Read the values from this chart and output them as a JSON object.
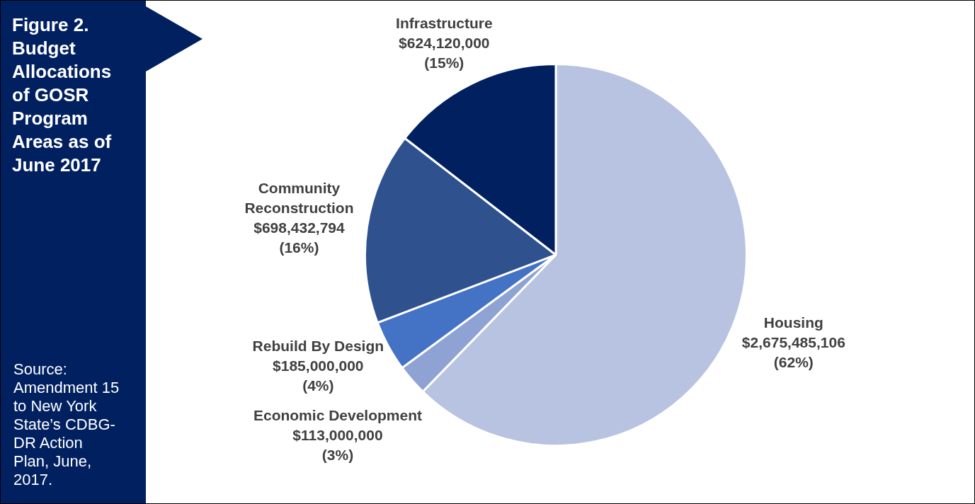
{
  "chart_data": {
    "type": "pie",
    "title": "Figure 2. Budget Allocations of GOSR Program Areas as of June 2017",
    "categories": [
      "Housing",
      "Economic Development",
      "Rebuild By Design",
      "Community Reconstruction",
      "Infrastructure"
    ],
    "values": [
      2675485106,
      113000000,
      185000000,
      698432794,
      624120000
    ],
    "value_labels": [
      "$2,675,485,106 (62%)",
      "$113,000,000 (3%)",
      "$185,000,000 (4%)",
      "$698,432,794 (16%)",
      "$624,120,000 (15%)"
    ],
    "colors": [
      "#b8c2e1",
      "#8fa2d4",
      "#4472c4",
      "#2f528f",
      "#002060"
    ],
    "legend": false,
    "annotations": [
      "Source: Amendment 15 to New York State’s CDBG-DR Action Plan, June, 2017."
    ]
  }
}
